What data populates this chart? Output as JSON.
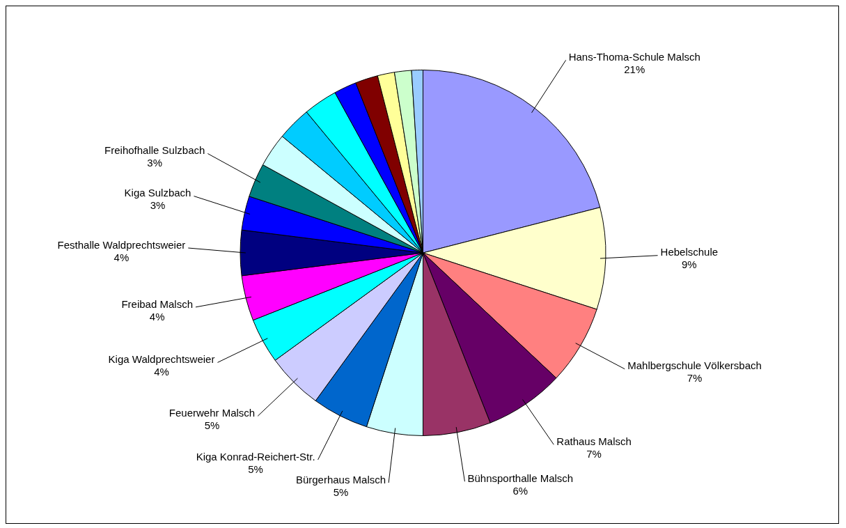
{
  "chart_data": {
    "type": "pie",
    "categories": [
      "Hans-Thoma-Schule Malsch",
      "Hebelschule",
      "Mahlbergschule Völkersbach",
      "Rathaus Malsch",
      "Bühnsporthalle Malsch",
      "Bürgerhaus Malsch",
      "Kiga Konrad-Reichert-Str.",
      "Feuerwehr Malsch",
      "Kiga Waldprechtsweier",
      "Freibad Malsch",
      "Festhalle Waldprechtsweier",
      "Kiga Sulzbach",
      "Freihofhalle Sulzbach",
      null,
      null,
      null,
      null,
      null,
      null,
      null,
      null
    ],
    "values": [
      21,
      9,
      7,
      7,
      6,
      5,
      5,
      5,
      4,
      4,
      4,
      3,
      3,
      3,
      3,
      3,
      2,
      2,
      1.5,
      1.5,
      1
    ],
    "colors": [
      "#9999ff",
      "#ffffcc",
      "#ff8080",
      "#660066",
      "#993366",
      "#ccffff",
      "#0066cc",
      "#ccccff",
      "#00ffff",
      "#ff00ff",
      "#000080",
      "#0000ff",
      "#008080",
      "#ccffff",
      "#00ccff",
      "#00ffff",
      "#0000ff",
      "#800000",
      "#ffff99",
      "#ccffcc",
      "#99ccff"
    ],
    "value_labels": [
      "21%",
      "9%",
      "7%",
      "7%",
      "6%",
      "5%",
      "5%",
      "5%",
      "4%",
      "4%",
      "4%",
      "3%",
      "3%",
      null,
      null,
      null,
      null,
      null,
      null,
      null,
      null
    ]
  }
}
